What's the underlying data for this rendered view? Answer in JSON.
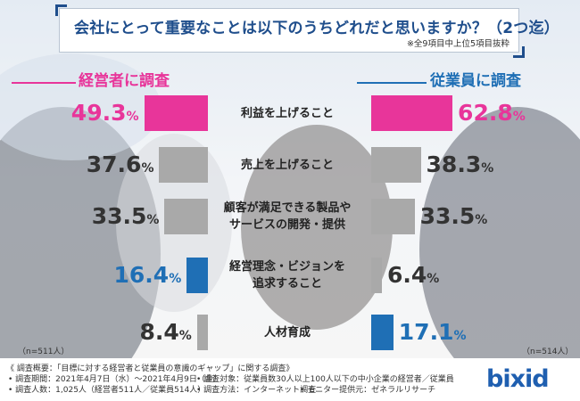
{
  "title": {
    "question": "会社にとって重要なことは以下のうちどれだと思いますか？（2つ迄）",
    "note": "※全9項目中上位5項目抜粋"
  },
  "groups": {
    "left": {
      "label": "経営者に調査",
      "n": "（n=511人）"
    },
    "right": {
      "label": "従業員に調査",
      "n": "（n=514人）"
    }
  },
  "colors": {
    "pink": "#e8359a",
    "blue": "#1f6fb5",
    "gray": "#a9a9a9",
    "darkgray": "#333333"
  },
  "chart_data": {
    "type": "bar",
    "unit": "%",
    "series": [
      {
        "name": "経営者に調査",
        "values": [
          49.3,
          37.6,
          33.5,
          16.4,
          8.4
        ]
      },
      {
        "name": "従業員に調査",
        "values": [
          62.8,
          38.3,
          33.5,
          6.4,
          17.1
        ]
      }
    ],
    "categories": [
      [
        "利益を上げること"
      ],
      [
        "売上を上げること"
      ],
      [
        "顧客が満足できる製品や",
        "サービスの開発・提供"
      ],
      [
        "経営理念・ビジョンを",
        "追求すること"
      ],
      [
        "人材育成"
      ]
    ],
    "display_values": {
      "left": [
        "49.3",
        "37.6",
        "33.5",
        "16.4",
        "8.4"
      ],
      "right": [
        "62.8",
        "38.3",
        "33.5",
        "6.4",
        "17.1"
      ]
    },
    "bar_colors": {
      "left": [
        "pink",
        "gray",
        "gray",
        "blue",
        "gray"
      ],
      "right": [
        "pink",
        "gray",
        "gray",
        "gray",
        "blue"
      ]
    }
  },
  "footer": {
    "title": "《 調査概要：「目標に対する経営者と従業員の意識のギャップ」に関する調査》",
    "period": "• 調査期間：2021年4月7日（水）～2021年4月9日（金）",
    "target": "• 調査対象：従業員数30人以上100人以下の中小企業の経営者／従業員",
    "people": "• 調査人数：1,025人（経営者511人／従業員514人）",
    "method": "• 調査方法：インターネット調査",
    "monitor": "• モニター提供元：ゼネラルリサーチ"
  },
  "logo": "bixid"
}
